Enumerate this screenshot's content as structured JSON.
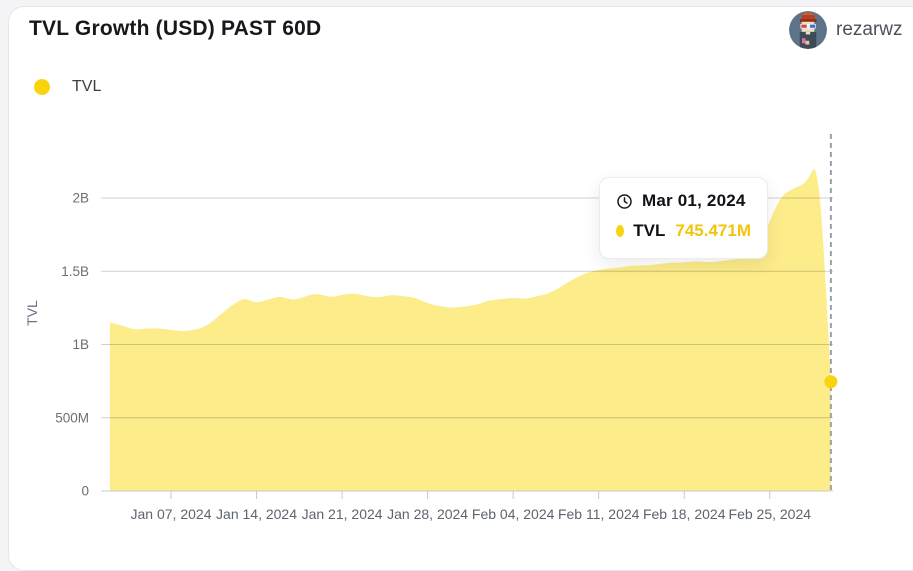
{
  "header": {
    "title": "TVL Growth (USD) PAST 60D",
    "user": "rezarwz"
  },
  "legend": {
    "label": "TVL"
  },
  "tooltip": {
    "date": "Mar 01, 2024",
    "series": "TVL",
    "value": "745.471M"
  },
  "colors": {
    "area_fill": "#FCEC8A",
    "series_accent": "#F9D40E",
    "tooltip_value_text": "#F2C40B",
    "dashed_line": "#9AA0A8"
  },
  "chart_data": {
    "type": "area",
    "title": "TVL Growth (USD) PAST 60D",
    "series_name": "TVL",
    "ylabel": "TVL",
    "xlabel": "",
    "grid": true,
    "legend_position": "top-left",
    "ylim_billion": [
      0,
      2.4
    ],
    "y_ticks": [
      "0",
      "500M",
      "1B",
      "1.5B",
      "2B"
    ],
    "y_tick_values_b": [
      0,
      0.5,
      1,
      1.5,
      2
    ],
    "x_tick_labels": [
      "Jan 07, 2024",
      "Jan 14, 2024",
      "Jan 21, 2024",
      "Jan 28, 2024",
      "Feb 04, 2024",
      "Feb 11, 2024",
      "Feb 18, 2024",
      "Feb 25, 2024"
    ],
    "x_tick_day_indices": [
      5,
      12,
      19,
      26,
      33,
      40,
      47,
      54
    ],
    "dates": [
      "Jan 02",
      "Jan 03",
      "Jan 04",
      "Jan 05",
      "Jan 06",
      "Jan 07",
      "Jan 08",
      "Jan 09",
      "Jan 10",
      "Jan 11",
      "Jan 12",
      "Jan 13",
      "Jan 14",
      "Jan 15",
      "Jan 16",
      "Jan 17",
      "Jan 18",
      "Jan 19",
      "Jan 20",
      "Jan 21",
      "Jan 22",
      "Jan 23",
      "Jan 24",
      "Jan 25",
      "Jan 26",
      "Jan 27",
      "Jan 28",
      "Jan 29",
      "Jan 30",
      "Jan 31",
      "Feb 01",
      "Feb 02",
      "Feb 03",
      "Feb 04",
      "Feb 05",
      "Feb 06",
      "Feb 07",
      "Feb 08",
      "Feb 09",
      "Feb 10",
      "Feb 11",
      "Feb 12",
      "Feb 13",
      "Feb 14",
      "Feb 15",
      "Feb 16",
      "Feb 17",
      "Feb 18",
      "Feb 19",
      "Feb 20",
      "Feb 21",
      "Feb 22",
      "Feb 23",
      "Feb 24",
      "Feb 25",
      "Feb 26",
      "Feb 27",
      "Feb 28",
      "Feb 29",
      "Mar 01"
    ],
    "values_billion_usd": [
      1.15,
      1.13,
      1.1,
      1.11,
      1.11,
      1.1,
      1.09,
      1.1,
      1.13,
      1.2,
      1.27,
      1.32,
      1.28,
      1.31,
      1.33,
      1.3,
      1.33,
      1.35,
      1.32,
      1.34,
      1.35,
      1.33,
      1.32,
      1.34,
      1.33,
      1.32,
      1.28,
      1.26,
      1.25,
      1.26,
      1.27,
      1.3,
      1.31,
      1.32,
      1.31,
      1.33,
      1.35,
      1.4,
      1.45,
      1.49,
      1.51,
      1.52,
      1.53,
      1.54,
      1.54,
      1.55,
      1.56,
      1.56,
      1.57,
      1.56,
      1.57,
      1.58,
      1.59,
      1.62,
      1.85,
      2.02,
      2.07,
      2.1,
      2.28,
      0.745471
    ],
    "highlight": {
      "date": "Mar 01, 2024",
      "value_billion": 0.745471,
      "label": "745.471M"
    }
  }
}
